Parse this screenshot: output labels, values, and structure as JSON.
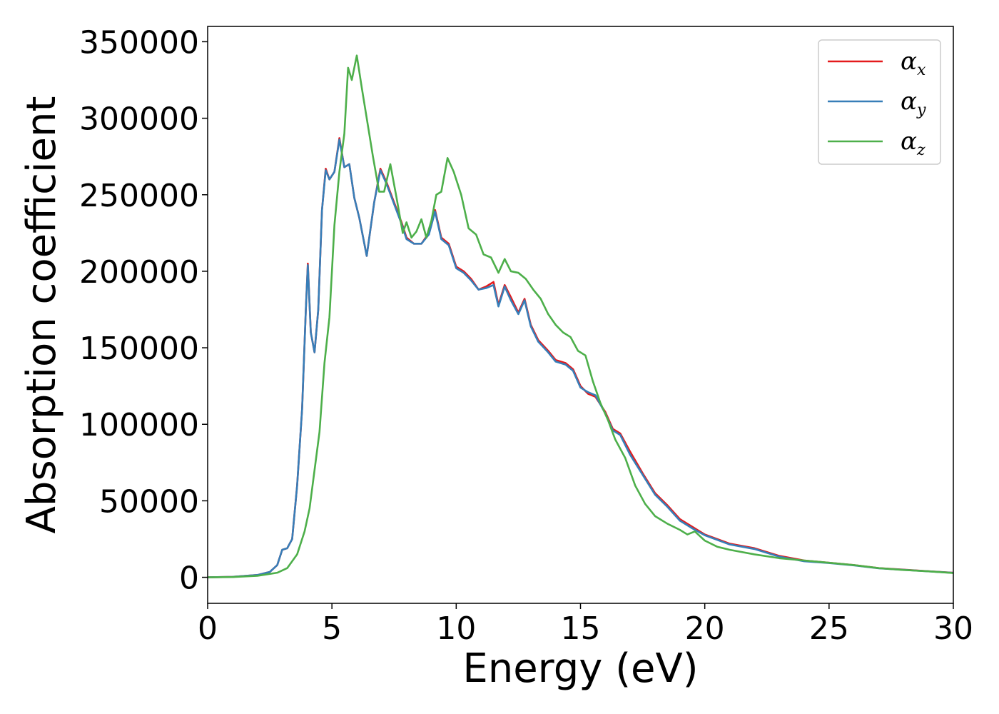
{
  "chart_data": {
    "type": "line",
    "title": "",
    "xlabel": "Energy (eV)",
    "ylabel": "Absorption coefficient",
    "xlim": [
      0,
      30
    ],
    "ylim": [
      -17000,
      360000
    ],
    "xticks": [
      0,
      5,
      10,
      15,
      20,
      25,
      30
    ],
    "yticks": [
      0,
      50000,
      100000,
      150000,
      200000,
      250000,
      300000,
      350000
    ],
    "grid": false,
    "legend_position": "top-right",
    "series": [
      {
        "name": "αx",
        "name_base": "α",
        "name_sub": "x",
        "color": "#e41a1c",
        "points": [
          [
            0,
            0
          ],
          [
            1,
            300
          ],
          [
            2,
            1500
          ],
          [
            2.5,
            3500
          ],
          [
            2.8,
            8000
          ],
          [
            3.0,
            18000
          ],
          [
            3.2,
            19000
          ],
          [
            3.4,
            25000
          ],
          [
            3.6,
            60000
          ],
          [
            3.8,
            110000
          ],
          [
            3.95,
            175000
          ],
          [
            4.03,
            205000
          ],
          [
            4.15,
            160000
          ],
          [
            4.3,
            147000
          ],
          [
            4.45,
            175000
          ],
          [
            4.6,
            240000
          ],
          [
            4.75,
            267000
          ],
          [
            4.9,
            260000
          ],
          [
            5.1,
            265000
          ],
          [
            5.3,
            287000
          ],
          [
            5.5,
            268000
          ],
          [
            5.7,
            270000
          ],
          [
            5.9,
            248000
          ],
          [
            6.1,
            235000
          ],
          [
            6.4,
            210000
          ],
          [
            6.7,
            245000
          ],
          [
            6.95,
            267000
          ],
          [
            7.2,
            258000
          ],
          [
            7.5,
            245000
          ],
          [
            7.8,
            232000
          ],
          [
            8.0,
            222000
          ],
          [
            8.3,
            218000
          ],
          [
            8.6,
            218000
          ],
          [
            8.9,
            225000
          ],
          [
            9.15,
            240000
          ],
          [
            9.4,
            222000
          ],
          [
            9.7,
            218000
          ],
          [
            10.0,
            203000
          ],
          [
            10.3,
            200000
          ],
          [
            10.6,
            195000
          ],
          [
            10.9,
            188000
          ],
          [
            11.2,
            190000
          ],
          [
            11.5,
            193000
          ],
          [
            11.7,
            178000
          ],
          [
            11.95,
            191000
          ],
          [
            12.2,
            183000
          ],
          [
            12.5,
            173000
          ],
          [
            12.75,
            182000
          ],
          [
            13.0,
            165000
          ],
          [
            13.3,
            155000
          ],
          [
            13.7,
            148000
          ],
          [
            14.0,
            142000
          ],
          [
            14.4,
            140000
          ],
          [
            14.7,
            136000
          ],
          [
            15.0,
            125000
          ],
          [
            15.3,
            120000
          ],
          [
            15.6,
            118000
          ],
          [
            16.0,
            108000
          ],
          [
            16.3,
            97000
          ],
          [
            16.6,
            94000
          ],
          [
            17.0,
            82000
          ],
          [
            17.5,
            68000
          ],
          [
            18.0,
            55000
          ],
          [
            18.5,
            47000
          ],
          [
            19.0,
            38000
          ],
          [
            19.5,
            33000
          ],
          [
            20.0,
            28000
          ],
          [
            21.0,
            22000
          ],
          [
            22.0,
            19000
          ],
          [
            23.0,
            14000
          ],
          [
            24.0,
            11000
          ],
          [
            25.0,
            9500
          ],
          [
            26.0,
            8000
          ],
          [
            27.0,
            6000
          ],
          [
            28.0,
            5000
          ],
          [
            29.0,
            4000
          ],
          [
            30.0,
            3000
          ]
        ]
      },
      {
        "name": "αy",
        "name_base": "α",
        "name_sub": "y",
        "color": "#377eb8",
        "points": [
          [
            0,
            0
          ],
          [
            1,
            300
          ],
          [
            2,
            1500
          ],
          [
            2.5,
            3500
          ],
          [
            2.8,
            8000
          ],
          [
            3.0,
            18000
          ],
          [
            3.2,
            19000
          ],
          [
            3.4,
            25000
          ],
          [
            3.6,
            60000
          ],
          [
            3.8,
            110000
          ],
          [
            3.95,
            175000
          ],
          [
            4.03,
            204000
          ],
          [
            4.15,
            160000
          ],
          [
            4.3,
            147000
          ],
          [
            4.45,
            175000
          ],
          [
            4.6,
            240000
          ],
          [
            4.75,
            266000
          ],
          [
            4.9,
            260000
          ],
          [
            5.1,
            265000
          ],
          [
            5.3,
            286000
          ],
          [
            5.5,
            268000
          ],
          [
            5.7,
            270000
          ],
          [
            5.9,
            248000
          ],
          [
            6.1,
            235000
          ],
          [
            6.4,
            210000
          ],
          [
            6.7,
            245000
          ],
          [
            6.95,
            266000
          ],
          [
            7.2,
            257000
          ],
          [
            7.5,
            244000
          ],
          [
            7.8,
            231000
          ],
          [
            8.0,
            221000
          ],
          [
            8.3,
            218000
          ],
          [
            8.6,
            218000
          ],
          [
            8.9,
            224000
          ],
          [
            9.15,
            239000
          ],
          [
            9.4,
            221000
          ],
          [
            9.7,
            217000
          ],
          [
            10.0,
            202000
          ],
          [
            10.3,
            199000
          ],
          [
            10.6,
            194000
          ],
          [
            10.9,
            188000
          ],
          [
            11.2,
            189000
          ],
          [
            11.5,
            191000
          ],
          [
            11.7,
            177000
          ],
          [
            11.95,
            190000
          ],
          [
            12.2,
            181000
          ],
          [
            12.5,
            172000
          ],
          [
            12.75,
            181000
          ],
          [
            13.0,
            164000
          ],
          [
            13.3,
            154000
          ],
          [
            13.7,
            147000
          ],
          [
            14.0,
            141000
          ],
          [
            14.4,
            139000
          ],
          [
            14.7,
            135000
          ],
          [
            15.0,
            124000
          ],
          [
            15.3,
            121000
          ],
          [
            15.6,
            119000
          ],
          [
            16.0,
            107000
          ],
          [
            16.3,
            96000
          ],
          [
            16.6,
            93000
          ],
          [
            17.0,
            80000
          ],
          [
            17.5,
            67000
          ],
          [
            18.0,
            54000
          ],
          [
            18.5,
            46000
          ],
          [
            19.0,
            37000
          ],
          [
            19.5,
            32000
          ],
          [
            20.0,
            27500
          ],
          [
            21.0,
            21500
          ],
          [
            22.0,
            18500
          ],
          [
            23.0,
            13500
          ],
          [
            24.0,
            10500
          ],
          [
            25.0,
            9300
          ],
          [
            26.0,
            7800
          ],
          [
            27.0,
            5900
          ],
          [
            28.0,
            4900
          ],
          [
            29.0,
            3900
          ],
          [
            30.0,
            2900
          ]
        ]
      },
      {
        "name": "αz",
        "name_base": "α",
        "name_sub": "z",
        "color": "#4daf4a",
        "points": [
          [
            0,
            0
          ],
          [
            1,
            200
          ],
          [
            2,
            1000
          ],
          [
            2.8,
            3000
          ],
          [
            3.2,
            6000
          ],
          [
            3.6,
            15000
          ],
          [
            3.9,
            30000
          ],
          [
            4.1,
            45000
          ],
          [
            4.3,
            70000
          ],
          [
            4.5,
            95000
          ],
          [
            4.7,
            140000
          ],
          [
            4.9,
            170000
          ],
          [
            5.1,
            230000
          ],
          [
            5.3,
            265000
          ],
          [
            5.5,
            290000
          ],
          [
            5.65,
            333000
          ],
          [
            5.8,
            325000
          ],
          [
            6.0,
            341000
          ],
          [
            6.2,
            320000
          ],
          [
            6.4,
            300000
          ],
          [
            6.65,
            275000
          ],
          [
            6.9,
            252000
          ],
          [
            7.1,
            252000
          ],
          [
            7.35,
            270000
          ],
          [
            7.6,
            248000
          ],
          [
            7.85,
            225000
          ],
          [
            8.0,
            232000
          ],
          [
            8.2,
            222000
          ],
          [
            8.4,
            226000
          ],
          [
            8.6,
            234000
          ],
          [
            8.8,
            222000
          ],
          [
            9.0,
            233000
          ],
          [
            9.2,
            250000
          ],
          [
            9.4,
            252000
          ],
          [
            9.65,
            274000
          ],
          [
            9.9,
            265000
          ],
          [
            10.2,
            250000
          ],
          [
            10.5,
            228000
          ],
          [
            10.8,
            224000
          ],
          [
            11.1,
            211000
          ],
          [
            11.4,
            209000
          ],
          [
            11.7,
            199000
          ],
          [
            11.95,
            208000
          ],
          [
            12.2,
            200000
          ],
          [
            12.5,
            199000
          ],
          [
            12.8,
            195000
          ],
          [
            13.1,
            188000
          ],
          [
            13.4,
            182000
          ],
          [
            13.7,
            172000
          ],
          [
            14.0,
            165000
          ],
          [
            14.3,
            160000
          ],
          [
            14.6,
            157000
          ],
          [
            14.9,
            148000
          ],
          [
            15.2,
            145000
          ],
          [
            15.5,
            128000
          ],
          [
            15.8,
            114000
          ],
          [
            16.1,
            103000
          ],
          [
            16.4,
            90000
          ],
          [
            16.8,
            78000
          ],
          [
            17.2,
            60000
          ],
          [
            17.6,
            48000
          ],
          [
            18.0,
            40000
          ],
          [
            18.5,
            35000
          ],
          [
            19.0,
            31000
          ],
          [
            19.3,
            28000
          ],
          [
            19.6,
            30000
          ],
          [
            20.0,
            24000
          ],
          [
            20.5,
            20000
          ],
          [
            21.0,
            18000
          ],
          [
            22.0,
            15000
          ],
          [
            23.0,
            12500
          ],
          [
            24.0,
            11000
          ],
          [
            25.0,
            9500
          ],
          [
            26.0,
            8000
          ],
          [
            27.0,
            6000
          ],
          [
            28.0,
            4800
          ],
          [
            29.0,
            3900
          ],
          [
            30.0,
            2800
          ]
        ]
      }
    ]
  }
}
